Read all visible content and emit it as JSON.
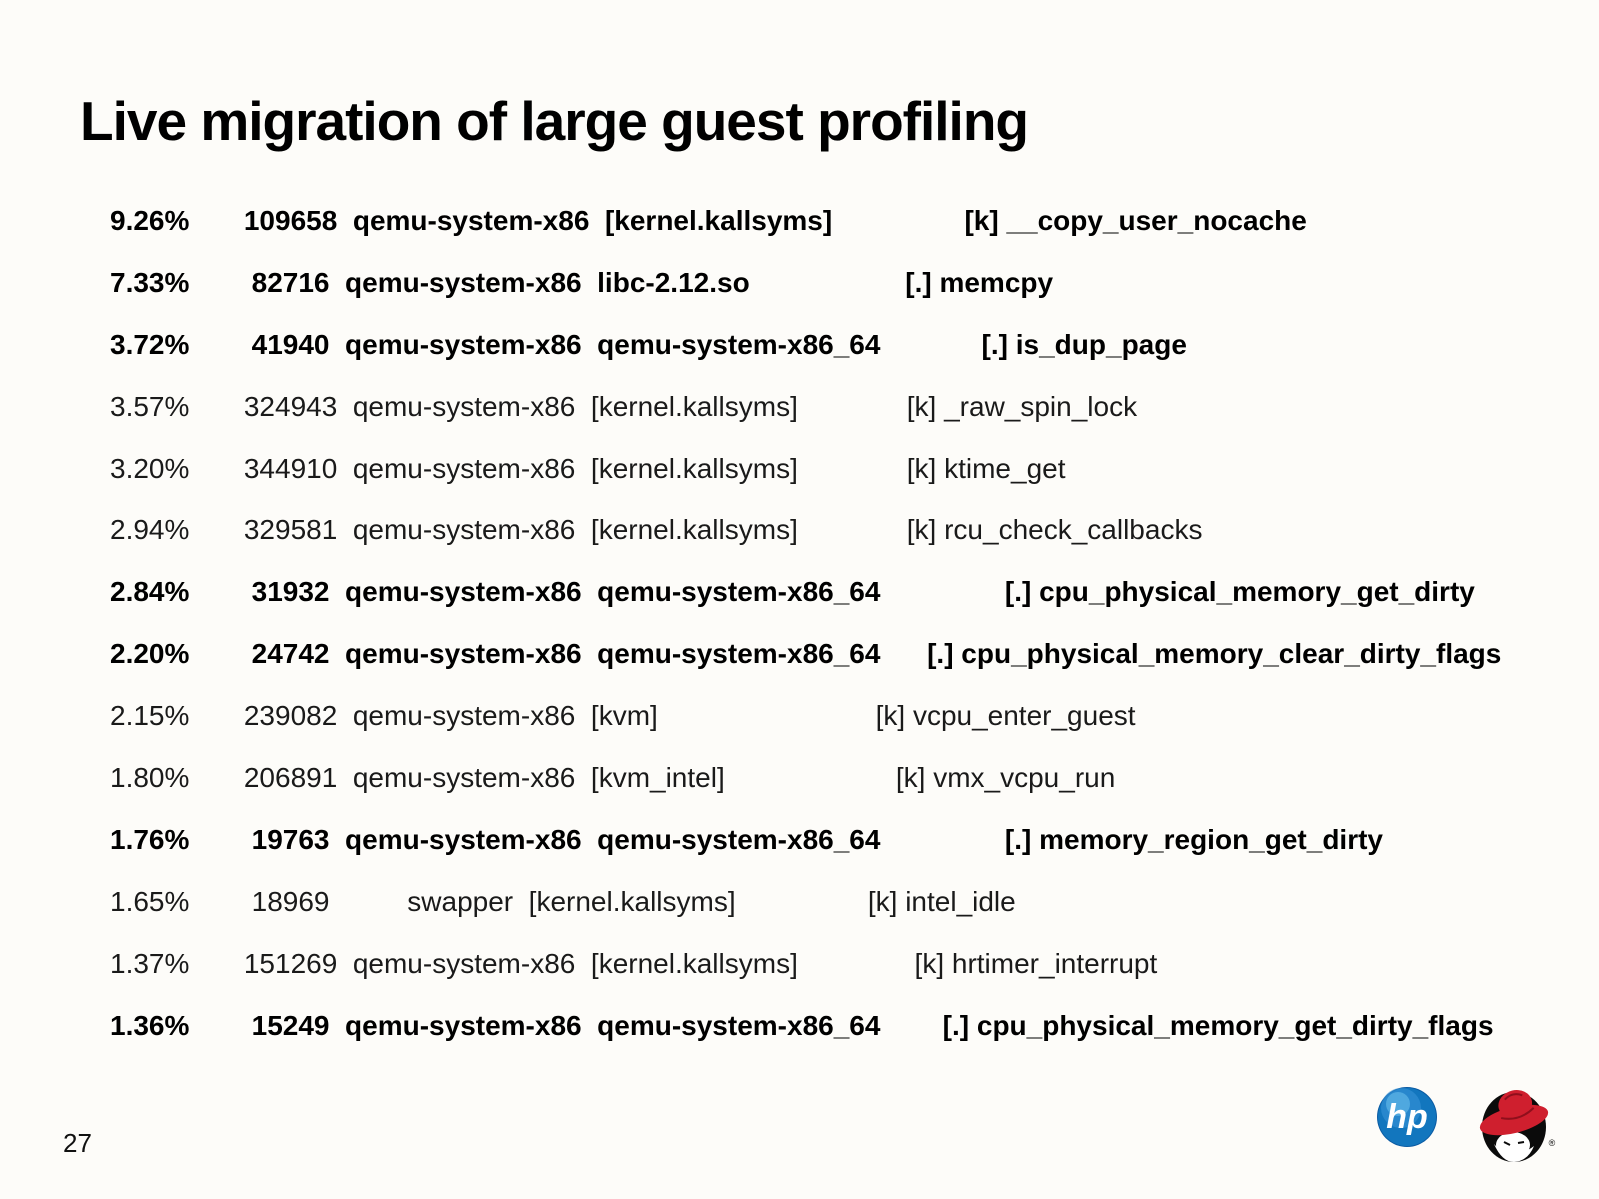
{
  "slide": {
    "title": "Live migration of large guest profiling",
    "page_number": "27"
  },
  "profiling": {
    "rows": [
      {
        "bold": true,
        "pct": "9.26%",
        "samples": "109658",
        "command": "qemu-system-x86",
        "dso": "[kernel.kallsyms]",
        "symbol": "[k] __copy_user_nocache",
        "text": "9.26%       109658  qemu-system-x86  [kernel.kallsyms]                 [k] __copy_user_nocache"
      },
      {
        "bold": true,
        "pct": "7.33%",
        "samples": "82716",
        "command": "qemu-system-x86",
        "dso": "libc-2.12.so",
        "symbol": "[.] memcpy",
        "text": "7.33%        82716  qemu-system-x86  libc-2.12.so                    [.] memcpy"
      },
      {
        "bold": true,
        "pct": "3.72%",
        "samples": "41940",
        "command": "qemu-system-x86",
        "dso": "qemu-system-x86_64",
        "symbol": "[.] is_dup_page",
        "text": "3.72%        41940  qemu-system-x86  qemu-system-x86_64             [.] is_dup_page"
      },
      {
        "bold": false,
        "pct": "3.57%",
        "samples": "324943",
        "command": "qemu-system-x86",
        "dso": "[kernel.kallsyms]",
        "symbol": "[k] _raw_spin_lock",
        "text": "3.57%       324943  qemu-system-x86  [kernel.kallsyms]              [k] _raw_spin_lock"
      },
      {
        "bold": false,
        "pct": "3.20%",
        "samples": "344910",
        "command": "qemu-system-x86",
        "dso": "[kernel.kallsyms]",
        "symbol": "[k] ktime_get",
        "text": "3.20%       344910  qemu-system-x86  [kernel.kallsyms]              [k] ktime_get"
      },
      {
        "bold": false,
        "pct": "2.94%",
        "samples": "329581",
        "command": "qemu-system-x86",
        "dso": "[kernel.kallsyms]",
        "symbol": "[k] rcu_check_callbacks",
        "text": "2.94%       329581  qemu-system-x86  [kernel.kallsyms]              [k] rcu_check_callbacks"
      },
      {
        "bold": true,
        "pct": "2.84%",
        "samples": "31932",
        "command": "qemu-system-x86",
        "dso": "qemu-system-x86_64",
        "symbol": "[.] cpu_physical_memory_get_dirty",
        "text": "2.84%        31932  qemu-system-x86  qemu-system-x86_64                [.] cpu_physical_memory_get_dirty"
      },
      {
        "bold": true,
        "pct": "2.20%",
        "samples": "24742",
        "command": "qemu-system-x86",
        "dso": "qemu-system-x86_64",
        "symbol": "[.] cpu_physical_memory_clear_dirty_flags",
        "text": "2.20%        24742  qemu-system-x86  qemu-system-x86_64      [.] cpu_physical_memory_clear_dirty_flags"
      },
      {
        "bold": false,
        "pct": "2.15%",
        "samples": "239082",
        "command": "qemu-system-x86",
        "dso": "[kvm]",
        "symbol": "[k] vcpu_enter_guest",
        "text": "2.15%       239082  qemu-system-x86  [kvm]                            [k] vcpu_enter_guest"
      },
      {
        "bold": false,
        "pct": "1.80%",
        "samples": "206891",
        "command": "qemu-system-x86",
        "dso": "[kvm_intel]",
        "symbol": "[k] vmx_vcpu_run",
        "text": "1.80%       206891  qemu-system-x86  [kvm_intel]                      [k] vmx_vcpu_run"
      },
      {
        "bold": true,
        "pct": "1.76%",
        "samples": "19763",
        "command": "qemu-system-x86",
        "dso": "qemu-system-x86_64",
        "symbol": "[.] memory_region_get_dirty",
        "text": "1.76%        19763  qemu-system-x86  qemu-system-x86_64                [.] memory_region_get_dirty"
      },
      {
        "bold": false,
        "pct": "1.65%",
        "samples": "18969",
        "command": "swapper",
        "dso": "[kernel.kallsyms]",
        "symbol": "[k] intel_idle",
        "text": "1.65%        18969          swapper  [kernel.kallsyms]                 [k] intel_idle"
      },
      {
        "bold": false,
        "pct": "1.37%",
        "samples": "151269",
        "command": "qemu-system-x86",
        "dso": "[kernel.kallsyms]",
        "symbol": "[k] hrtimer_interrupt",
        "text": "1.37%       151269  qemu-system-x86  [kernel.kallsyms]               [k] hrtimer_interrupt"
      },
      {
        "bold": true,
        "pct": "1.36%",
        "samples": "15249",
        "command": "qemu-system-x86",
        "dso": "qemu-system-x86_64",
        "symbol": "[.] cpu_physical_memory_get_dirty_flags",
        "text": "1.36%        15249  qemu-system-x86  qemu-system-x86_64        [.] cpu_physical_memory_get_dirty_flags"
      }
    ]
  },
  "logos": {
    "hp_text": "hp",
    "registered_mark": "®"
  },
  "colors": {
    "background": "#fdfcf9",
    "text": "#000000",
    "hp_blue": "#1276be",
    "hp_blue_dark": "#0b5ba3",
    "hp_blue_light": "#6fc2ee",
    "redhat_red": "#cf1f2e",
    "redhat_black": "#0b0b0b"
  }
}
